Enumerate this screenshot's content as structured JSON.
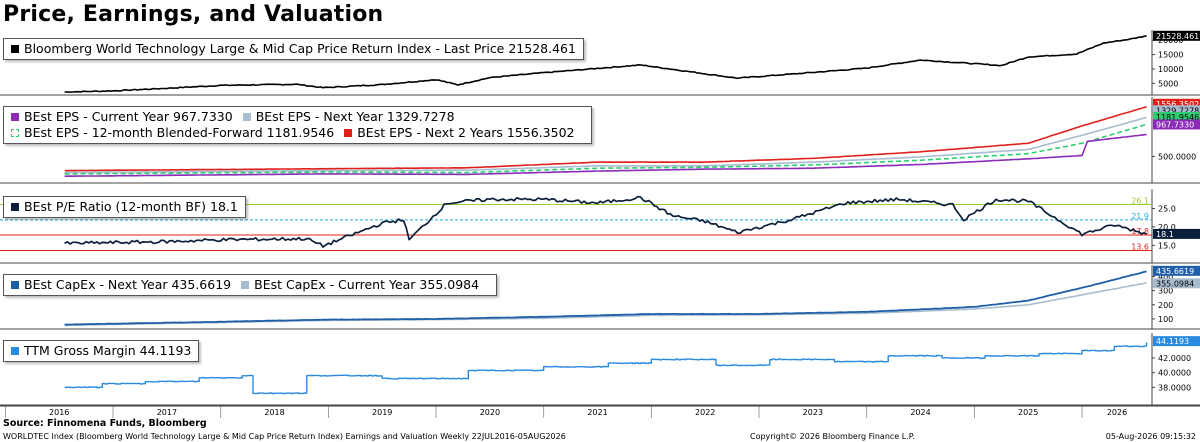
{
  "title": "Price, Earnings, and Valuation",
  "colors": {
    "price": "#000000",
    "eps_cy": "#8b2bb8",
    "eps_ny": "#a8bccf",
    "eps_bf": "#2ecc71",
    "eps_n2": "#e0201b",
    "pe": "#0b1f3a",
    "pe_hi": "#9acd32",
    "pe_mid": "#22aadd",
    "pe_lo": "#e0201b",
    "capex_ny": "#1f5fa8",
    "capex_cy": "#a8bccf",
    "gm": "#2a8ae0"
  },
  "footer": {
    "source": "Source: Finnomena Funds, Bloomberg",
    "description": "WORLDTEC Index (Bloomberg World Technology Large & Mid Cap Price Return Index) Earnings and Valuation Weekly 22JUL2016-05AUG2026",
    "copyright": "Copyright© 2026 Bloomberg Finance L.P.",
    "timestamp": "05-Aug-2026 09:15:32"
  },
  "chart_data": [
    {
      "type": "line",
      "panel": "price",
      "legend": [
        "Bloomberg World Technology Large & Mid Cap Price Return Index - Last Price 21528.461"
      ],
      "ylim": [
        2000,
        22500
      ],
      "yticks": [
        "5000",
        "10000",
        "15000",
        "20000"
      ],
      "last_label": "21528.461",
      "series": [
        {
          "name": "Bloomberg World Technology Large & Mid Cap Price Return Index - Last Price",
          "x": [
            2016.55,
            2017.0,
            2017.5,
            2018.0,
            2018.7,
            2018.95,
            2019.5,
            2020.0,
            2020.2,
            2020.5,
            2021.0,
            2021.9,
            2022.8,
            2023.5,
            2024.0,
            2024.5,
            2025.25,
            2025.5,
            2025.95,
            2026.2,
            2026.45,
            2026.6
          ],
          "values": [
            2000,
            2400,
            3300,
            4300,
            4700,
            3500,
            4600,
            6300,
            4500,
            7000,
            8700,
            11400,
            6800,
            8800,
            10300,
            13100,
            11200,
            14200,
            15200,
            19000,
            20400,
            21528.461
          ]
        }
      ]
    },
    {
      "type": "line",
      "panel": "eps",
      "legend": [
        "BEst EPS - Current Year 967.7330",
        "BEst EPS - Next Year 1329.7278",
        "BEst EPS - 12-month Blended-Forward 1181.9546",
        "BEst EPS - Next 2 Years 1556.3502"
      ],
      "ylim": [
        0,
        1700
      ],
      "yticks": [
        "500.0000"
      ],
      "last_labels": [
        "1556.3502",
        "1329.7278",
        "1181.9546",
        "967.7330"
      ],
      "series": [
        {
          "name": "BEst EPS - Current Year",
          "x": [
            2016.55,
            2019.0,
            2020.3,
            2021.5,
            2022.5,
            2023.5,
            2024.5,
            2025.5,
            2026.0,
            2026.05,
            2026.6
          ],
          "values": [
            80,
            130,
            120,
            190,
            230,
            250,
            330,
            450,
            520,
            820,
            967.733
          ]
        },
        {
          "name": "BEst EPS - Next Year",
          "x": [
            2016.55,
            2019.0,
            2020.3,
            2021.5,
            2022.5,
            2023.5,
            2024.5,
            2025.5,
            2026.0,
            2026.6
          ],
          "values": [
            160,
            200,
            210,
            300,
            300,
            380,
            490,
            650,
            950,
            1329.7278
          ]
        },
        {
          "name": "BEst EPS - 12-month Blended-Forward",
          "x": [
            2016.55,
            2019.0,
            2020.3,
            2021.5,
            2022.5,
            2023.5,
            2024.5,
            2025.5,
            2026.0,
            2026.6
          ],
          "values": [
            130,
            170,
            160,
            250,
            270,
            320,
            420,
            560,
            780,
            1181.9546
          ]
        },
        {
          "name": "BEst EPS - Next 2 Years",
          "x": [
            2016.55,
            2019.0,
            2020.3,
            2021.5,
            2022.5,
            2023.5,
            2024.5,
            2025.5,
            2026.0,
            2026.6
          ],
          "values": [
            200,
            240,
            260,
            380,
            380,
            460,
            600,
            780,
            1150,
            1556.3502
          ]
        }
      ]
    },
    {
      "type": "line",
      "panel": "pe",
      "legend": [
        "BEst P/E Ratio (12-month BF) 18.1"
      ],
      "ylim": [
        11,
        29.5
      ],
      "yticks": [
        "15.0",
        "20.0",
        "25.0"
      ],
      "reference_lines": [
        {
          "label": "26.1",
          "value": 26.1
        },
        {
          "label": "21.9",
          "value": 21.9
        },
        {
          "label": "17.8",
          "value": 17.8
        },
        {
          "label": "13.6",
          "value": 13.6
        }
      ],
      "last_label": "18.1",
      "series": [
        {
          "name": "BEst P/E Ratio (12-month BF)",
          "x": [
            2016.55,
            2017.5,
            2018.0,
            2018.8,
            2018.95,
            2019.5,
            2019.7,
            2019.75,
            2020.1,
            2020.5,
            2021.0,
            2021.5,
            2021.9,
            2022.2,
            2022.5,
            2022.8,
            2023.3,
            2023.8,
            2024.3,
            2024.8,
            2024.9,
            2025.2,
            2025.5,
            2026.0,
            2026.3,
            2026.6
          ],
          "values": [
            15.5,
            16.0,
            16.5,
            16.8,
            14.8,
            21.0,
            22.0,
            16.5,
            26.5,
            27.5,
            27.5,
            26.5,
            28.0,
            23.0,
            21.5,
            18.5,
            22.0,
            26.5,
            27.5,
            26.0,
            22.0,
            27.5,
            27.0,
            18.0,
            20.5,
            18.1
          ]
        }
      ]
    },
    {
      "type": "line",
      "panel": "capex",
      "legend": [
        "BEst CapEx - Next Year 435.6619",
        "BEst CapEx - Current Year 355.0984"
      ],
      "ylim": [
        50,
        460
      ],
      "yticks": [
        "100",
        "200",
        "300",
        "400"
      ],
      "last_labels": [
        "435.6619",
        "355.0984"
      ],
      "series": [
        {
          "name": "BEst CapEx - Next Year",
          "x": [
            2016.55,
            2018.0,
            2019.0,
            2020.0,
            2021.0,
            2022.0,
            2023.0,
            2024.0,
            2025.0,
            2025.5,
            2026.0,
            2026.6
          ],
          "values": [
            60,
            80,
            95,
            100,
            115,
            135,
            135,
            150,
            185,
            230,
            320,
            435.6619
          ]
        },
        {
          "name": "BEst CapEx - Current Year",
          "x": [
            2016.55,
            2018.0,
            2019.0,
            2020.0,
            2021.0,
            2022.0,
            2023.0,
            2024.0,
            2025.0,
            2025.5,
            2026.0,
            2026.6
          ],
          "values": [
            55,
            75,
            90,
            95,
            105,
            125,
            130,
            140,
            170,
            200,
            270,
            355.0984
          ]
        }
      ]
    },
    {
      "type": "line",
      "panel": "gross_margin",
      "legend": [
        "TTM Gross Margin 44.1193"
      ],
      "ylim": [
        36,
        45
      ],
      "yticks": [
        "38.0000",
        "40.0000",
        "42.0000"
      ],
      "last_label": "44.1193",
      "series": [
        {
          "name": "TTM Gross Margin",
          "x": [
            2016.55,
            2016.9,
            2017.3,
            2017.8,
            2018.2,
            2018.3,
            2018.8,
            2019.5,
            2020.3,
            2021.0,
            2021.6,
            2022.0,
            2022.6,
            2023.1,
            2023.7,
            2024.2,
            2024.7,
            2025.1,
            2025.6,
            2026.0,
            2026.3,
            2026.6
          ],
          "values": [
            38.0,
            38.5,
            38.8,
            39.3,
            39.6,
            37.2,
            39.6,
            39.2,
            40.3,
            40.8,
            41.3,
            41.8,
            41.0,
            41.8,
            41.5,
            42.3,
            42.0,
            42.3,
            42.6,
            43.0,
            43.6,
            44.1193
          ]
        }
      ]
    }
  ],
  "x_axis": {
    "xlim": [
      2015.95,
      2026.65
    ],
    "labels": [
      "2016",
      "2017",
      "2018",
      "2019",
      "2020",
      "2021",
      "2022",
      "2023",
      "2024",
      "2025",
      "2026"
    ]
  }
}
